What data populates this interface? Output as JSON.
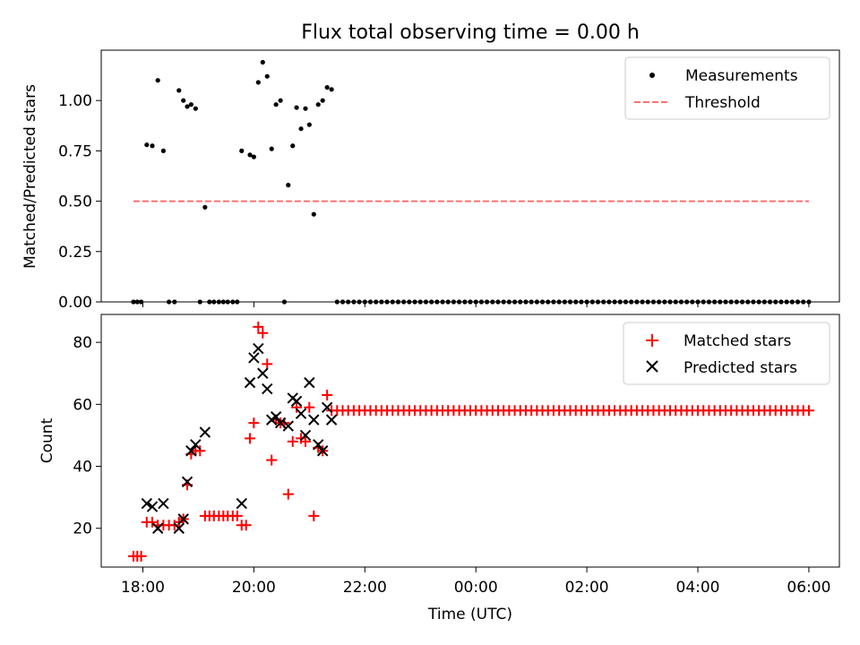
{
  "chart_data": [
    {
      "type": "scatter",
      "title": "Flux total observing time = 0.00 h",
      "xlabel": "",
      "ylabel": "Matched/Predicted stars",
      "x_unit": "hours since 18:00 UTC",
      "xlim": [
        -0.75,
        12.55
      ],
      "ylim": [
        0,
        1.25
      ],
      "yticks": [
        0,
        0.25,
        0.5,
        0.75,
        1.0
      ],
      "ytick_labels": [
        "0.00",
        "0.25",
        "0.50",
        "0.75",
        "1.00"
      ],
      "legend_position": "top-right",
      "legend": [
        "Measurements",
        "Threshold"
      ],
      "series": [
        {
          "name": "Measurements",
          "marker": "dot",
          "color": "#000000",
          "points": [
            [
              -0.17,
              0
            ],
            [
              -0.1,
              0
            ],
            [
              -0.03,
              0
            ],
            [
              0.07,
              0.78
            ],
            [
              0.17,
              0.775
            ],
            [
              0.27,
              1.1
            ],
            [
              0.37,
              0.75
            ],
            [
              0.47,
              0
            ],
            [
              0.57,
              0
            ],
            [
              0.65,
              1.05
            ],
            [
              0.73,
              1.0
            ],
            [
              0.8,
              0.97
            ],
            [
              0.87,
              0.98
            ],
            [
              0.95,
              0.96
            ],
            [
              1.03,
              0
            ],
            [
              1.12,
              0.47
            ],
            [
              1.2,
              0
            ],
            [
              1.28,
              0
            ],
            [
              1.37,
              0
            ],
            [
              1.45,
              0
            ],
            [
              1.53,
              0
            ],
            [
              1.62,
              0
            ],
            [
              1.7,
              0
            ],
            [
              1.78,
              0.75
            ],
            [
              1.93,
              0.73
            ],
            [
              2.0,
              0.72
            ],
            [
              2.08,
              1.09
            ],
            [
              2.16,
              1.19
            ],
            [
              2.24,
              1.12
            ],
            [
              2.32,
              0.76
            ],
            [
              2.4,
              0.98
            ],
            [
              2.48,
              1.0
            ],
            [
              2.55,
              0
            ],
            [
              2.62,
              0.58
            ],
            [
              2.7,
              0.775
            ],
            [
              2.77,
              0.965
            ],
            [
              2.85,
              0.86
            ],
            [
              2.93,
              0.96
            ],
            [
              3.0,
              0.88
            ],
            [
              3.08,
              0.435
            ],
            [
              3.16,
              0.98
            ],
            [
              3.24,
              1.0
            ],
            [
              3.32,
              1.065
            ],
            [
              3.4,
              1.055
            ]
          ],
          "zero_run": {
            "start": 3.5,
            "end": 12.0,
            "step": 0.1,
            "value": 0
          }
        },
        {
          "name": "Threshold",
          "style": "dashed",
          "color": "#ff7070",
          "x": [
            -0.17,
            12.0
          ],
          "y": [
            0.5,
            0.5
          ]
        }
      ]
    },
    {
      "type": "scatter",
      "title": "",
      "xlabel": "Time (UTC)",
      "ylabel": "Count",
      "x_unit": "hours since 18:00 UTC",
      "xlim": [
        -0.75,
        12.55
      ],
      "ylim": [
        7.5,
        89
      ],
      "xticks": [
        0,
        2,
        4,
        6,
        8,
        10,
        12
      ],
      "xtick_labels": [
        "18:00",
        "20:00",
        "22:00",
        "00:00",
        "02:00",
        "04:00",
        "06:00"
      ],
      "yticks": [
        20,
        40,
        60,
        80
      ],
      "ytick_labels": [
        "20",
        "40",
        "60",
        "80"
      ],
      "legend_position": "top-right",
      "legend": [
        "Matched stars",
        "Predicted stars"
      ],
      "series": [
        {
          "name": "Matched stars",
          "marker": "plus",
          "color": "#ff0000",
          "points": [
            [
              -0.17,
              11
            ],
            [
              -0.1,
              11
            ],
            [
              -0.03,
              11
            ],
            [
              0.07,
              22
            ],
            [
              0.17,
              22
            ],
            [
              0.27,
              21
            ],
            [
              0.37,
              21
            ],
            [
              0.47,
              21
            ],
            [
              0.57,
              21
            ],
            [
              0.65,
              22
            ],
            [
              0.73,
              23
            ],
            [
              0.8,
              34
            ],
            [
              0.87,
              44
            ],
            [
              0.95,
              45
            ],
            [
              1.03,
              45
            ],
            [
              1.12,
              24
            ],
            [
              1.2,
              24
            ],
            [
              1.28,
              24
            ],
            [
              1.37,
              24
            ],
            [
              1.45,
              24
            ],
            [
              1.53,
              24
            ],
            [
              1.62,
              24
            ],
            [
              1.7,
              24
            ],
            [
              1.78,
              21
            ],
            [
              1.86,
              21
            ],
            [
              1.93,
              49
            ],
            [
              2.0,
              54
            ],
            [
              2.08,
              85
            ],
            [
              2.16,
              83
            ],
            [
              2.24,
              73
            ],
            [
              2.32,
              42
            ],
            [
              2.4,
              55
            ],
            [
              2.48,
              54
            ],
            [
              2.55,
              54
            ],
            [
              2.62,
              31
            ],
            [
              2.7,
              48
            ],
            [
              2.77,
              59
            ],
            [
              2.85,
              49
            ],
            [
              2.93,
              48
            ],
            [
              3.0,
              59
            ],
            [
              3.08,
              24
            ],
            [
              3.16,
              46
            ],
            [
              3.24,
              45
            ],
            [
              3.32,
              63
            ],
            [
              3.4,
              58
            ]
          ],
          "constant_run": {
            "start": 3.5,
            "end": 12.0,
            "step": 0.1,
            "value": 58
          }
        },
        {
          "name": "Predicted stars",
          "marker": "x",
          "color": "#000000",
          "points": [
            [
              0.07,
              28
            ],
            [
              0.17,
              27
            ],
            [
              0.27,
              20
            ],
            [
              0.37,
              28
            ],
            [
              0.65,
              20
            ],
            [
              0.73,
              23
            ],
            [
              0.8,
              35
            ],
            [
              0.87,
              45
            ],
            [
              0.95,
              47
            ],
            [
              1.12,
              51
            ],
            [
              1.78,
              28
            ],
            [
              1.93,
              67
            ],
            [
              2.0,
              75
            ],
            [
              2.08,
              78
            ],
            [
              2.16,
              70
            ],
            [
              2.24,
              65
            ],
            [
              2.32,
              55
            ],
            [
              2.4,
              56
            ],
            [
              2.48,
              54
            ],
            [
              2.62,
              53
            ],
            [
              2.7,
              62
            ],
            [
              2.77,
              61
            ],
            [
              2.85,
              57
            ],
            [
              2.93,
              50
            ],
            [
              3.0,
              67
            ],
            [
              3.08,
              55
            ],
            [
              3.16,
              47
            ],
            [
              3.24,
              45
            ],
            [
              3.32,
              59
            ],
            [
              3.4,
              55
            ]
          ]
        }
      ]
    }
  ]
}
